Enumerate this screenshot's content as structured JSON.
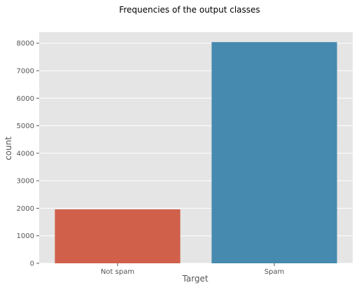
{
  "chart_data": {
    "type": "bar",
    "title": "Frequencies of the output classes",
    "xlabel": "Target",
    "ylabel": "count",
    "categories": [
      "Not spam",
      "Spam"
    ],
    "values": [
      1960,
      8040
    ],
    "ylim": [
      0,
      8400
    ],
    "yticks": [
      0,
      1000,
      2000,
      3000,
      4000,
      5000,
      6000,
      7000,
      8000
    ],
    "grid": true,
    "colors": {
      "plot_background": "#e5e5e5",
      "grid": "#ffffff",
      "bars": [
        "#d0604a",
        "#468ab0"
      ]
    }
  }
}
